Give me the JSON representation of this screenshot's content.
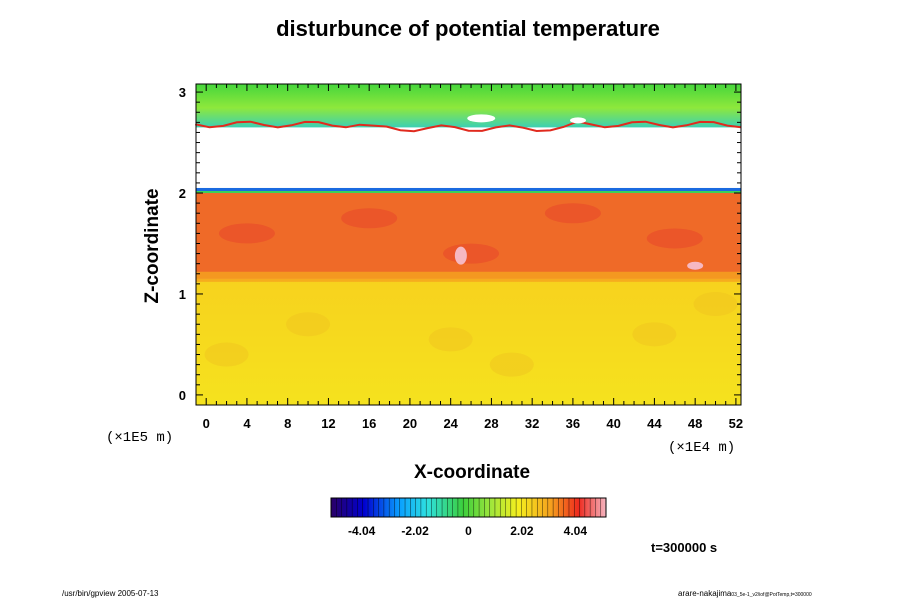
{
  "chart_data": {
    "type": "heatmap",
    "title": "disturbunce of potential temperature",
    "xlabel": "X-coordinate",
    "ylabel": "Z-coordinate",
    "x_scale_label": "(×1E4 m)",
    "y_scale_label": "(×1E5 m)",
    "xlim": [
      -1,
      52.5
    ],
    "ylim": [
      -0.1,
      3.08
    ],
    "x_ticks": [
      "0",
      "4",
      "8",
      "12",
      "16",
      "20",
      "24",
      "28",
      "32",
      "36",
      "40",
      "44",
      "48",
      "52"
    ],
    "y_ticks": [
      "0",
      "1",
      "2",
      "3"
    ],
    "colorbar": {
      "range": [
        -5.2,
        5.2
      ],
      "tick_labels": [
        "-4.04",
        "-2.02",
        "0",
        "2.02",
        "4.04"
      ],
      "tick_values": [
        -4.04,
        -2.02,
        0,
        2.02,
        4.04
      ]
    },
    "layers": [
      {
        "z_range": [
          0,
          1.15
        ],
        "value": 2.7
      },
      {
        "z_range": [
          1.15,
          2.0
        ],
        "value": 4.1
      },
      {
        "z_range": [
          2.0,
          2.05
        ],
        "value": -3.0
      },
      {
        "z_range": [
          2.05,
          2.65
        ],
        "value": "above colorbar range (blank)"
      },
      {
        "z_range": [
          2.65,
          3.08
        ],
        "value": 0.6
      }
    ]
  },
  "time_label": "t=300000 s",
  "footer_left": "/usr/bin/gpview 2005-07-13",
  "footer_right_main": "arare-nakajima",
  "footer_right_sub": "03_5e-1_v2/iof@PotTemp,t=300000",
  "colors": {
    "lower_layer": "#f5dc1e",
    "middle_layer": "#ef6a28",
    "upper_layer": "#6ee23c",
    "bottom_strip": "#2a1a7a",
    "frame": "#000000"
  }
}
